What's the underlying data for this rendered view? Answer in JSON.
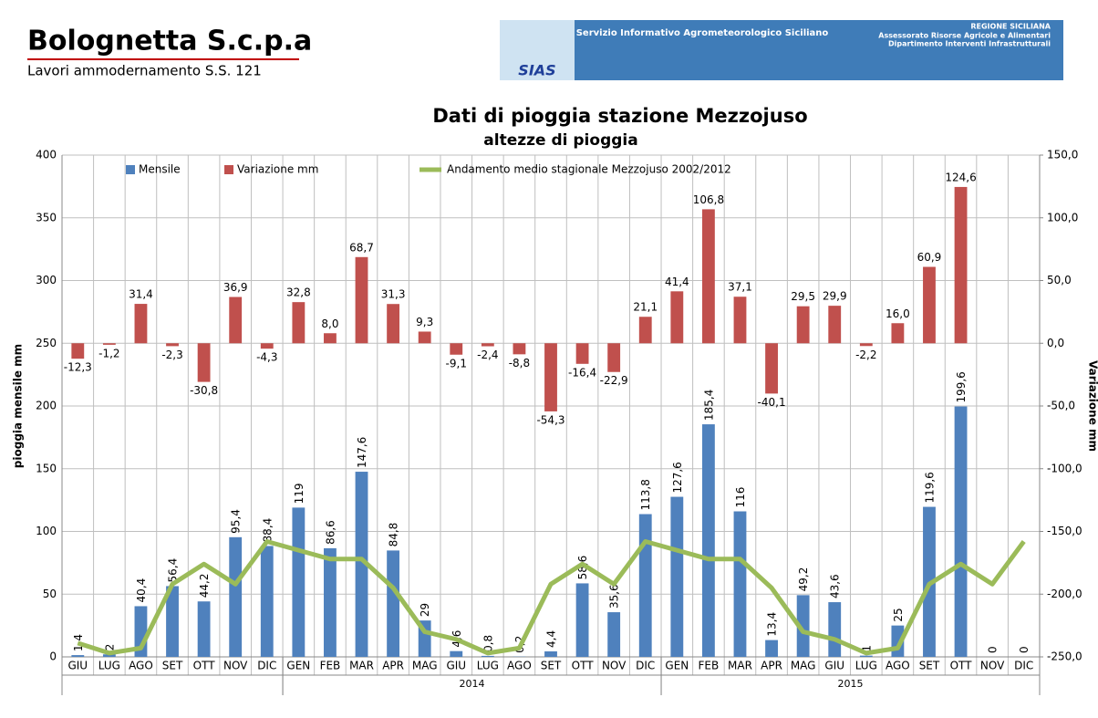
{
  "header": {
    "title": "Bolognetta S.c.p.a",
    "subtitle": "Lavori ammodernamento S.S. 121"
  },
  "banner": {
    "logo": "SIAS",
    "service": "Servizio Informativo Agrometeorologico Siciliano",
    "region": "REGIONE SICILIANA",
    "dept1": "Assessorato Risorse Agricole e Alimentari",
    "dept2": "Dipartimento Interventi Infrastrutturali"
  },
  "chart_data": {
    "type": "bar",
    "title": "Dati di pioggia stazione Mezzojuso",
    "subtitle": "altezze di pioggia",
    "y_label": "pioggia mensile mm",
    "y2_label": "Variazione mm",
    "categories": [
      "GIU",
      "LUG",
      "AGO",
      "SET",
      "OTT",
      "NOV",
      "DIC",
      "GEN",
      "FEB",
      "MAR",
      "APR",
      "MAG",
      "GIU",
      "LUG",
      "AGO",
      "SET",
      "OTT",
      "NOV",
      "DIC",
      "GEN",
      "FEB",
      "MAR",
      "APR",
      "MAG",
      "GIU",
      "LUG",
      "AGO",
      "SET",
      "OTT",
      "NOV",
      "DIC"
    ],
    "group_labels": [
      null,
      "2014",
      "2015"
    ],
    "group_sizes": [
      7,
      12,
      12
    ],
    "ylim": [
      0,
      400
    ],
    "yticks": [
      0,
      50,
      100,
      150,
      200,
      250,
      300,
      350,
      400
    ],
    "y2lim": [
      -250,
      150
    ],
    "y2ticks": [
      {
        "value": -250,
        "label": "-250,0"
      },
      {
        "value": -200,
        "label": "-200,0"
      },
      {
        "value": -150,
        "label": "-150,0"
      },
      {
        "value": -100,
        "label": "-100,0"
      },
      {
        "value": -50,
        "label": "-50,0"
      },
      {
        "value": 0,
        "label": "0,0"
      },
      {
        "value": 50,
        "label": "50,0"
      },
      {
        "value": 100,
        "label": "100,0"
      },
      {
        "value": 150,
        "label": "150,0"
      }
    ],
    "grid": true,
    "legend": "top",
    "series": [
      {
        "name": "Mensile",
        "type": "bar",
        "color": "#4f81bd",
        "values": [
          1.4,
          2,
          40.4,
          56.4,
          44.2,
          95.4,
          88.4,
          119,
          86.6,
          147.6,
          84.8,
          29,
          4.6,
          0.8,
          0.2,
          4.4,
          58.6,
          35.6,
          113.8,
          127.6,
          185.4,
          116,
          13.4,
          49.2,
          43.6,
          1,
          25,
          119.6,
          199.6,
          0,
          0
        ],
        "value_labels": [
          "1,4",
          "2",
          "40,4",
          "56,4",
          "44,2",
          "95,4",
          "88,4",
          "119",
          "86,6",
          "147,6",
          "84,8",
          "29",
          "4,6",
          "0,8",
          "0,2",
          "4,4",
          "58,6",
          "35,6",
          "113,8",
          "127,6",
          "185,4",
          "116",
          "13,4",
          "49,2",
          "43,6",
          "1",
          "25",
          "119,6",
          "199,6",
          "0",
          "0"
        ]
      },
      {
        "name": "Variazione mm",
        "type": "bar",
        "axis": "y2",
        "color": "#c0504d",
        "values": [
          -12.3,
          -1.2,
          31.4,
          -2.3,
          -30.8,
          36.9,
          -4.3,
          32.8,
          8.0,
          68.7,
          31.3,
          9.3,
          -9.1,
          -2.4,
          -8.8,
          -54.3,
          -16.4,
          -22.9,
          21.1,
          41.4,
          106.8,
          37.1,
          -40.1,
          29.5,
          29.9,
          -2.2,
          16.0,
          60.9,
          124.6,
          null,
          null
        ],
        "value_labels": [
          "-12,3",
          "-1,2",
          "31,4",
          "-2,3",
          "-30,8",
          "36,9",
          "-4,3",
          "32,8",
          "8,0",
          "68,7",
          "31,3",
          "9,3",
          "-9,1",
          "-2,4",
          "-8,8",
          "-54,3",
          "-16,4",
          "-22,9",
          "21,1",
          "41,4",
          "106,8",
          "37,1",
          "-40,1",
          "29,5",
          "29,9",
          "-2,2",
          "16,0",
          "60,9",
          "124,6",
          null,
          null
        ]
      },
      {
        "name": "Andamento medio stagionale Mezzojuso 2002/2012",
        "type": "line",
        "color": "#9bbb59",
        "values": [
          11,
          3,
          7,
          58,
          74,
          58,
          92,
          85,
          78,
          78,
          55,
          20,
          14,
          3,
          7,
          58,
          74,
          58,
          92,
          85,
          78,
          78,
          55,
          20,
          14,
          3,
          7,
          58,
          74,
          58,
          92
        ]
      }
    ]
  }
}
